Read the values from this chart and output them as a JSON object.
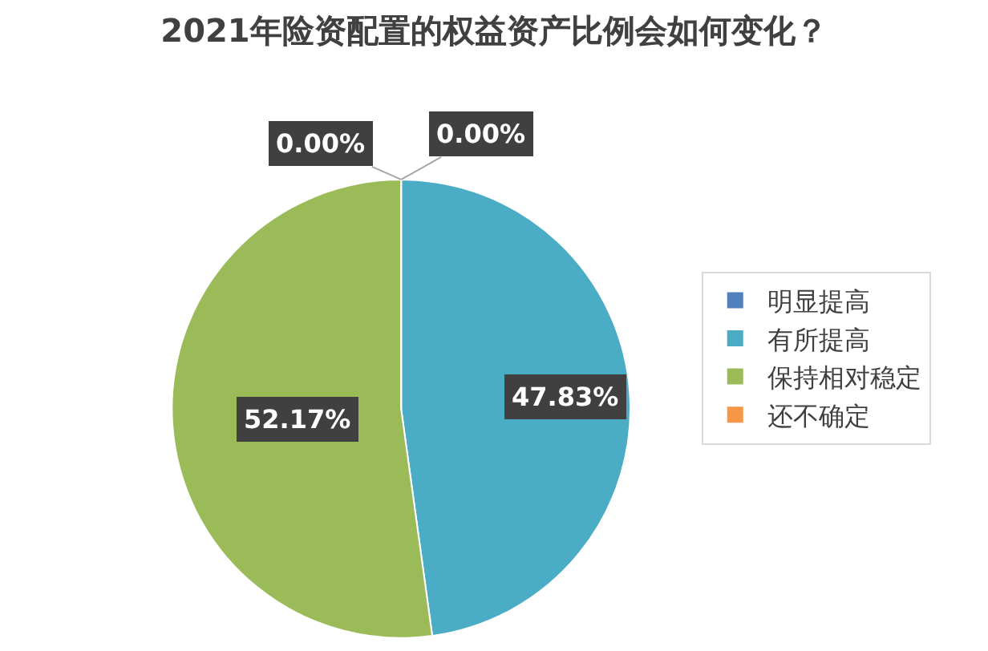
{
  "chart_data": {
    "type": "pie",
    "title": "2021年险资配置的权益资产比例会如何变化？",
    "categories": [
      "明显提高",
      "有所提高",
      "保持相对稳定",
      "还不确定"
    ],
    "values": [
      0,
      47.83,
      52.17,
      0
    ],
    "colors": [
      "#4f81bd",
      "#4bacc6",
      "#9bbb59",
      "#f79646"
    ],
    "value_labels": [
      "0.00%",
      "47.83%",
      "52.17%",
      "0.00%"
    ],
    "legend": "right"
  }
}
